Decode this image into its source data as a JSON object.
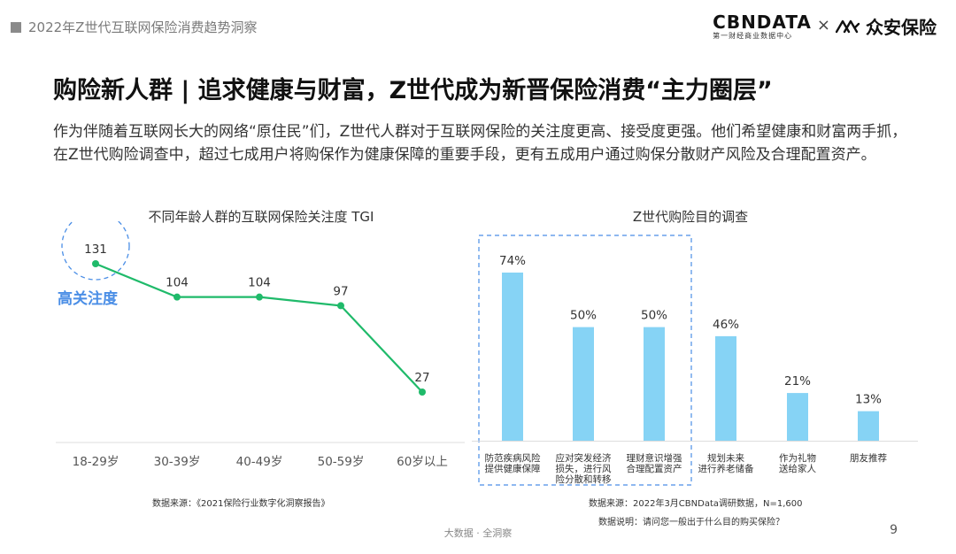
{
  "header": {
    "text": "2022年Z世代互联网保险消费趋势洞察"
  },
  "logo": {
    "cbn_main": "CBNDATA",
    "cbn_sub": "第一财经商业数据中心",
    "times": "×",
    "partner": "众安保险"
  },
  "title": "购险新人群 | 追求健康与财富，Z世代成为新晋保险消费“主力圈层”",
  "description": "作为伴随着互联网长大的网络“原住民”们，Z世代人群对于互联网保险的关注度更高、接受度更强。他们希望健康和财富两手抓，在Z世代购险调查中，超过七成用户将购保作为健康保障的重要手段，更有五成用户通过购保分散财产风险及合理配置资产。",
  "chart_data": [
    {
      "type": "line",
      "title": "不同年龄人群的互联网保险关注度 TGI",
      "categories": [
        "18-29岁",
        "30-39岁",
        "40-49岁",
        "50-59岁",
        "60岁以上"
      ],
      "values": [
        131,
        104,
        104,
        97,
        27
      ],
      "data_labels": [
        "131",
        "104",
        "104",
        "97",
        "27"
      ],
      "annotation": "高关注度",
      "source": "数据来源：《2021保险行业数字化洞察报告》",
      "color": "#1fba6a",
      "annotation_color": "#4a8ee6"
    },
    {
      "type": "bar",
      "title": "Z世代购险目的调查",
      "categories": [
        [
          "防范疾病风险",
          "提供健康保障"
        ],
        [
          "应对突发经济",
          "损失，进行风",
          "险分散和转移"
        ],
        [
          "理财意识增强",
          "合理配置资产"
        ],
        [
          "规划未来",
          "进行养老储备"
        ],
        [
          "作为礼物",
          "送给家人"
        ],
        [
          "朋友推荐"
        ]
      ],
      "values": [
        74,
        50,
        50,
        46,
        21,
        13
      ],
      "data_labels": [
        "74%",
        "50%",
        "50%",
        "46%",
        "21%",
        "13%"
      ],
      "highlight_count": 3,
      "source": "数据来源：2022年3月CBNData调研数据，N=1,600",
      "note": "数据说明：请问您一般出于什么目的购买保险？",
      "color": "#86d3f5",
      "highlight_border_color": "#4a8ee6"
    }
  ],
  "footer": {
    "center": "大数据 · 全洞察",
    "page": "9"
  }
}
